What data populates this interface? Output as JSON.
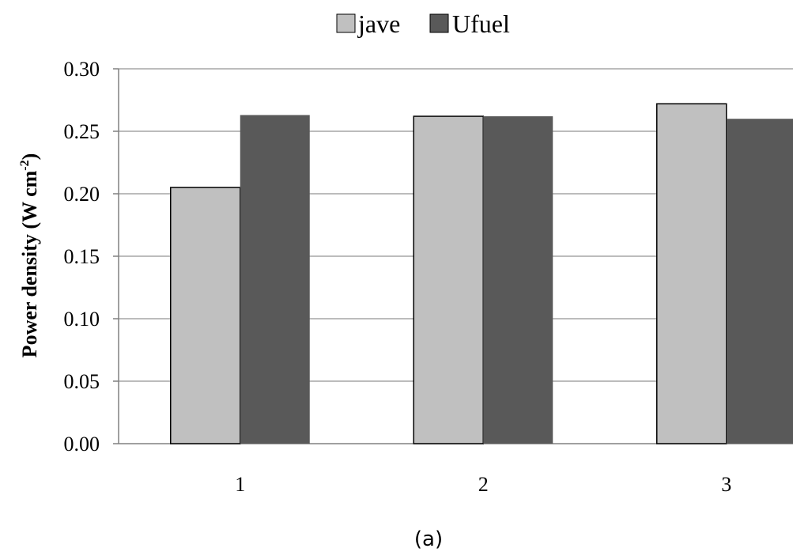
{
  "chart_data": {
    "type": "bar",
    "categories": [
      "1",
      "2",
      "3"
    ],
    "series": [
      {
        "name": "jave",
        "values": [
          0.205,
          0.262,
          0.272
        ],
        "color": "#c0c0c0"
      },
      {
        "name": "Ufuel",
        "values": [
          0.263,
          0.262,
          0.26
        ],
        "color": "#595959"
      }
    ],
    "ylabel_main": "Power density (W cm",
    "ylabel_sup": "-2",
    "ylabel_end": ")",
    "ylim": [
      0,
      0.3
    ],
    "yticks": [
      "0.00",
      "0.05",
      "0.10",
      "0.15",
      "0.20",
      "0.25",
      "0.30"
    ],
    "grid": true,
    "legend_position": "top"
  },
  "caption": "(a)"
}
